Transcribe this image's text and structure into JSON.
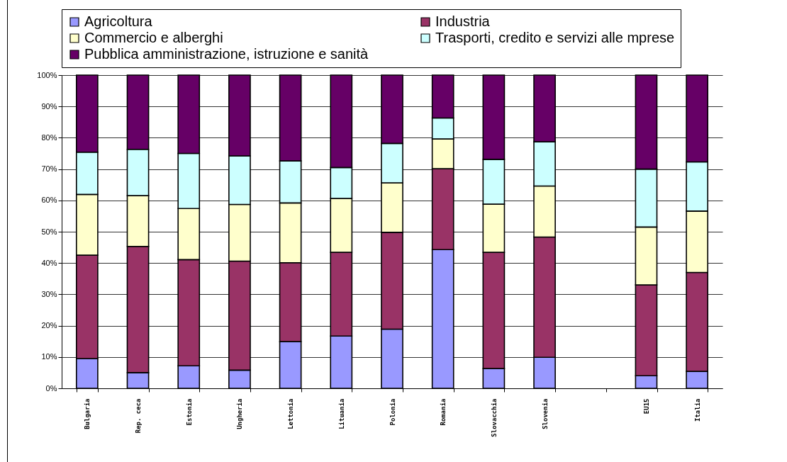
{
  "chart_data": {
    "type": "bar",
    "stacked": true,
    "categories": [
      "Bulgaria",
      "Rep. ceca",
      "Estonia",
      "Ungheria",
      "Lettonia",
      "Lituania",
      "Polonia",
      "Romania",
      "Slovacchia",
      "Slovenia",
      null,
      "EU15",
      "Italia"
    ],
    "series": [
      {
        "name": "Agricoltura",
        "color": "#9999ff",
        "values": [
          9.5,
          5.0,
          7.2,
          5.8,
          14.9,
          16.7,
          18.9,
          44.3,
          6.3,
          9.9,
          null,
          4.0,
          5.4
        ]
      },
      {
        "name": "Industria",
        "color": "#993366",
        "values": [
          33.0,
          40.3,
          33.9,
          34.8,
          25.2,
          26.7,
          30.9,
          25.8,
          37.1,
          38.4,
          null,
          29.0,
          31.6
        ]
      },
      {
        "name": "Commercio e alberghi",
        "color": "#ffffcc",
        "values": [
          19.4,
          16.2,
          16.3,
          18.1,
          19.1,
          17.2,
          15.8,
          9.5,
          15.4,
          16.3,
          null,
          18.5,
          19.6
        ]
      },
      {
        "name": "Trasporti, credito e servizi alle mprese",
        "color": "#ccffff",
        "values": [
          13.5,
          14.8,
          17.6,
          15.5,
          13.4,
          9.9,
          12.6,
          6.7,
          14.3,
          14.1,
          null,
          18.5,
          15.7
        ]
      },
      {
        "name": "Pubblica amministrazione, istruzione e sanità",
        "color": "#660066",
        "values": [
          24.6,
          23.7,
          25.0,
          25.8,
          27.4,
          29.5,
          21.8,
          13.7,
          26.9,
          21.3,
          null,
          30.0,
          27.7
        ]
      }
    ],
    "ylim": [
      0,
      100
    ],
    "yticks": [
      {
        "value": 0,
        "label": "0%"
      },
      {
        "value": 10,
        "label": "10%"
      },
      {
        "value": 20,
        "label": "20%"
      },
      {
        "value": 30,
        "label": "30%"
      },
      {
        "value": 40,
        "label": "40%"
      },
      {
        "value": 50,
        "label": "50%"
      },
      {
        "value": 60,
        "label": "60%"
      },
      {
        "value": 70,
        "label": "70%"
      },
      {
        "value": 80,
        "label": "80%"
      },
      {
        "value": 90,
        "label": "90%"
      },
      {
        "value": 100,
        "label": "100%"
      }
    ],
    "grid": "y",
    "legend": "top"
  }
}
